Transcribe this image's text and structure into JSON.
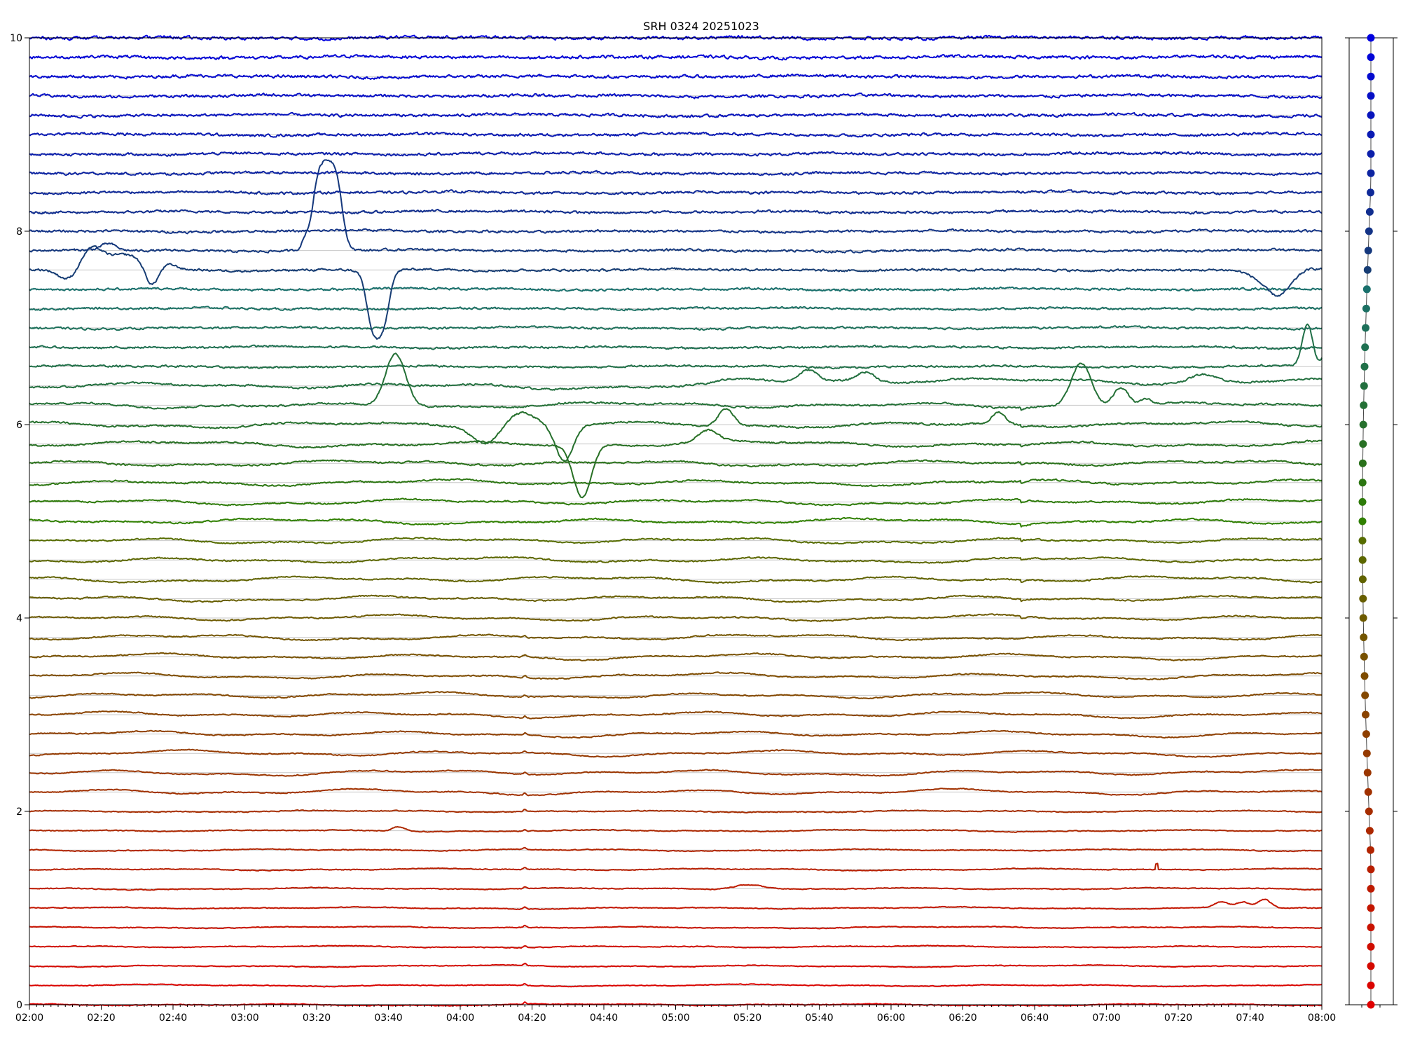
{
  "chart_data": {
    "type": "line",
    "title": "SRH 0324 20251023",
    "xlabel": "",
    "ylabel": "",
    "x_tick_labels": [
      "02:00",
      "02:20",
      "02:40",
      "03:00",
      "03:20",
      "03:40",
      "04:00",
      "04:20",
      "04:40",
      "05:00",
      "05:20",
      "05:40",
      "06:00",
      "06:20",
      "06:40",
      "07:00",
      "07:20",
      "07:40",
      "08:00"
    ],
    "x_range_minutes": [
      120,
      480
    ],
    "y_tick_labels": [
      "0",
      "2",
      "4",
      "6",
      "8",
      "10"
    ],
    "ylim": [
      0,
      10
    ],
    "grid": "horizontal lines at each trace baseline",
    "legend": "none",
    "side_panel": "dot strip showing channel colours from blue (top) to red (bottom)",
    "color_top": "#0000e0",
    "color_bottom": "#e00000",
    "channel_count": 51,
    "channel_spacing": 0.2,
    "noise_amplitude_top": 0.012,
    "noise_amplitude_bottom": 0.003,
    "events": [
      {
        "channel": 38,
        "type": "bump",
        "center_min": 137,
        "width_min": 4,
        "amplitude": 0.17
      },
      {
        "channel": 38,
        "type": "dip",
        "center_min": 131,
        "width_min": 4,
        "amplitude": -0.12
      },
      {
        "channel": 38,
        "type": "bump",
        "center_min": 141,
        "width_min": 7,
        "amplitude": 0.08
      },
      {
        "channel": 38,
        "type": "bump",
        "center_min": 148,
        "width_min": 6,
        "amplitude": 0.12
      },
      {
        "channel": 38,
        "type": "dip",
        "center_min": 154,
        "width_min": 2.5,
        "amplitude": -0.2
      },
      {
        "channel": 38,
        "type": "bump",
        "center_min": 159,
        "width_min": 3,
        "amplitude": 0.05
      },
      {
        "channel": 38,
        "type": "bump",
        "center_min": 468,
        "width_min": 4,
        "amplitude": -0.1
      },
      {
        "channel": 38,
        "type": "dip",
        "center_min": 467,
        "width_min": 7,
        "amplitude": -0.18
      },
      {
        "channel": 38,
        "type": "bump",
        "center_min": 476,
        "width_min": 4,
        "amplitude": 0.03
      },
      {
        "channel": 39,
        "type": "bump",
        "center_min": 142,
        "width_min": 3,
        "amplitude": 0.07
      },
      {
        "channel": 39,
        "type": "plateau",
        "start_min": 199,
        "end_min": 207,
        "amplitude": 0.95
      },
      {
        "channel": 39,
        "type": "bump",
        "center_min": 197,
        "width_min": 1.5,
        "amplitude": 0.1
      },
      {
        "channel": 38,
        "type": "plateau",
        "start_min": 214,
        "end_min": 220,
        "amplitude": -0.75
      },
      {
        "channel": 33,
        "type": "bump",
        "center_min": 476,
        "width_min": 2,
        "amplitude": 0.44
      },
      {
        "channel": 33,
        "type": "bump",
        "center_min": 482,
        "width_min": 1.8,
        "amplitude": 0.3
      },
      {
        "channel": 32,
        "type": "bump",
        "center_min": 337,
        "width_min": 3.5,
        "amplitude": 0.12
      },
      {
        "channel": 32,
        "type": "bump",
        "center_min": 353,
        "width_min": 3.5,
        "amplitude": 0.1
      },
      {
        "channel": 32,
        "type": "bump",
        "center_min": 447,
        "width_min": 5,
        "amplitude": 0.08
      },
      {
        "channel": 32,
        "type": "step",
        "start_min": 312,
        "amplitude": 0.05
      },
      {
        "channel": 31,
        "type": "bump",
        "center_min": 222,
        "width_min": 4,
        "amplitude": 0.55
      },
      {
        "channel": 31,
        "type": "bump",
        "center_min": 413,
        "width_min": 4,
        "amplitude": 0.45
      },
      {
        "channel": 31,
        "type": "bump",
        "center_min": 424,
        "width_min": 3,
        "amplitude": 0.2
      },
      {
        "channel": 31,
        "type": "bump",
        "center_min": 431,
        "width_min": 2,
        "amplitude": 0.06
      },
      {
        "channel": 30,
        "type": "dip",
        "center_min": 247,
        "width_min": 5,
        "amplitude": -0.18
      },
      {
        "channel": 30,
        "type": "dip",
        "center_min": 269,
        "width_min": 3.5,
        "amplitude": -0.38
      },
      {
        "channel": 30,
        "type": "bump",
        "center_min": 257,
        "width_min": 5,
        "amplitude": 0.12
      },
      {
        "channel": 30,
        "type": "bump",
        "center_min": 314,
        "width_min": 3,
        "amplitude": 0.18
      },
      {
        "channel": 30,
        "type": "bump",
        "center_min": 390,
        "width_min": 2.5,
        "amplitude": 0.12
      },
      {
        "channel": 29,
        "type": "dip",
        "center_min": 274,
        "width_min": 3.5,
        "amplitude": -0.55
      },
      {
        "channel": 29,
        "type": "bump",
        "center_min": 309,
        "width_min": 4,
        "amplitude": 0.12
      },
      {
        "channel": 9,
        "type": "bump",
        "center_min": 223,
        "width_min": 2.5,
        "amplitude": 0.05
      },
      {
        "channel": 5,
        "type": "bump",
        "center_min": 458,
        "width_min": 3,
        "amplitude": 0.06
      },
      {
        "channel": 5,
        "type": "bump",
        "center_min": 464,
        "width_min": 2.5,
        "amplitude": 0.09
      },
      {
        "channel": 5,
        "type": "bump",
        "center_min": 452,
        "width_min": 2.5,
        "amplitude": 0.06
      },
      {
        "channel": 6,
        "type": "bump",
        "center_min": 320,
        "width_min": 6,
        "amplitude": 0.05
      },
      {
        "channel": 7,
        "type": "spike",
        "center_min": 434,
        "amplitude": 0.06
      }
    ],
    "common_glitches_min": [
      258,
      396
    ]
  }
}
